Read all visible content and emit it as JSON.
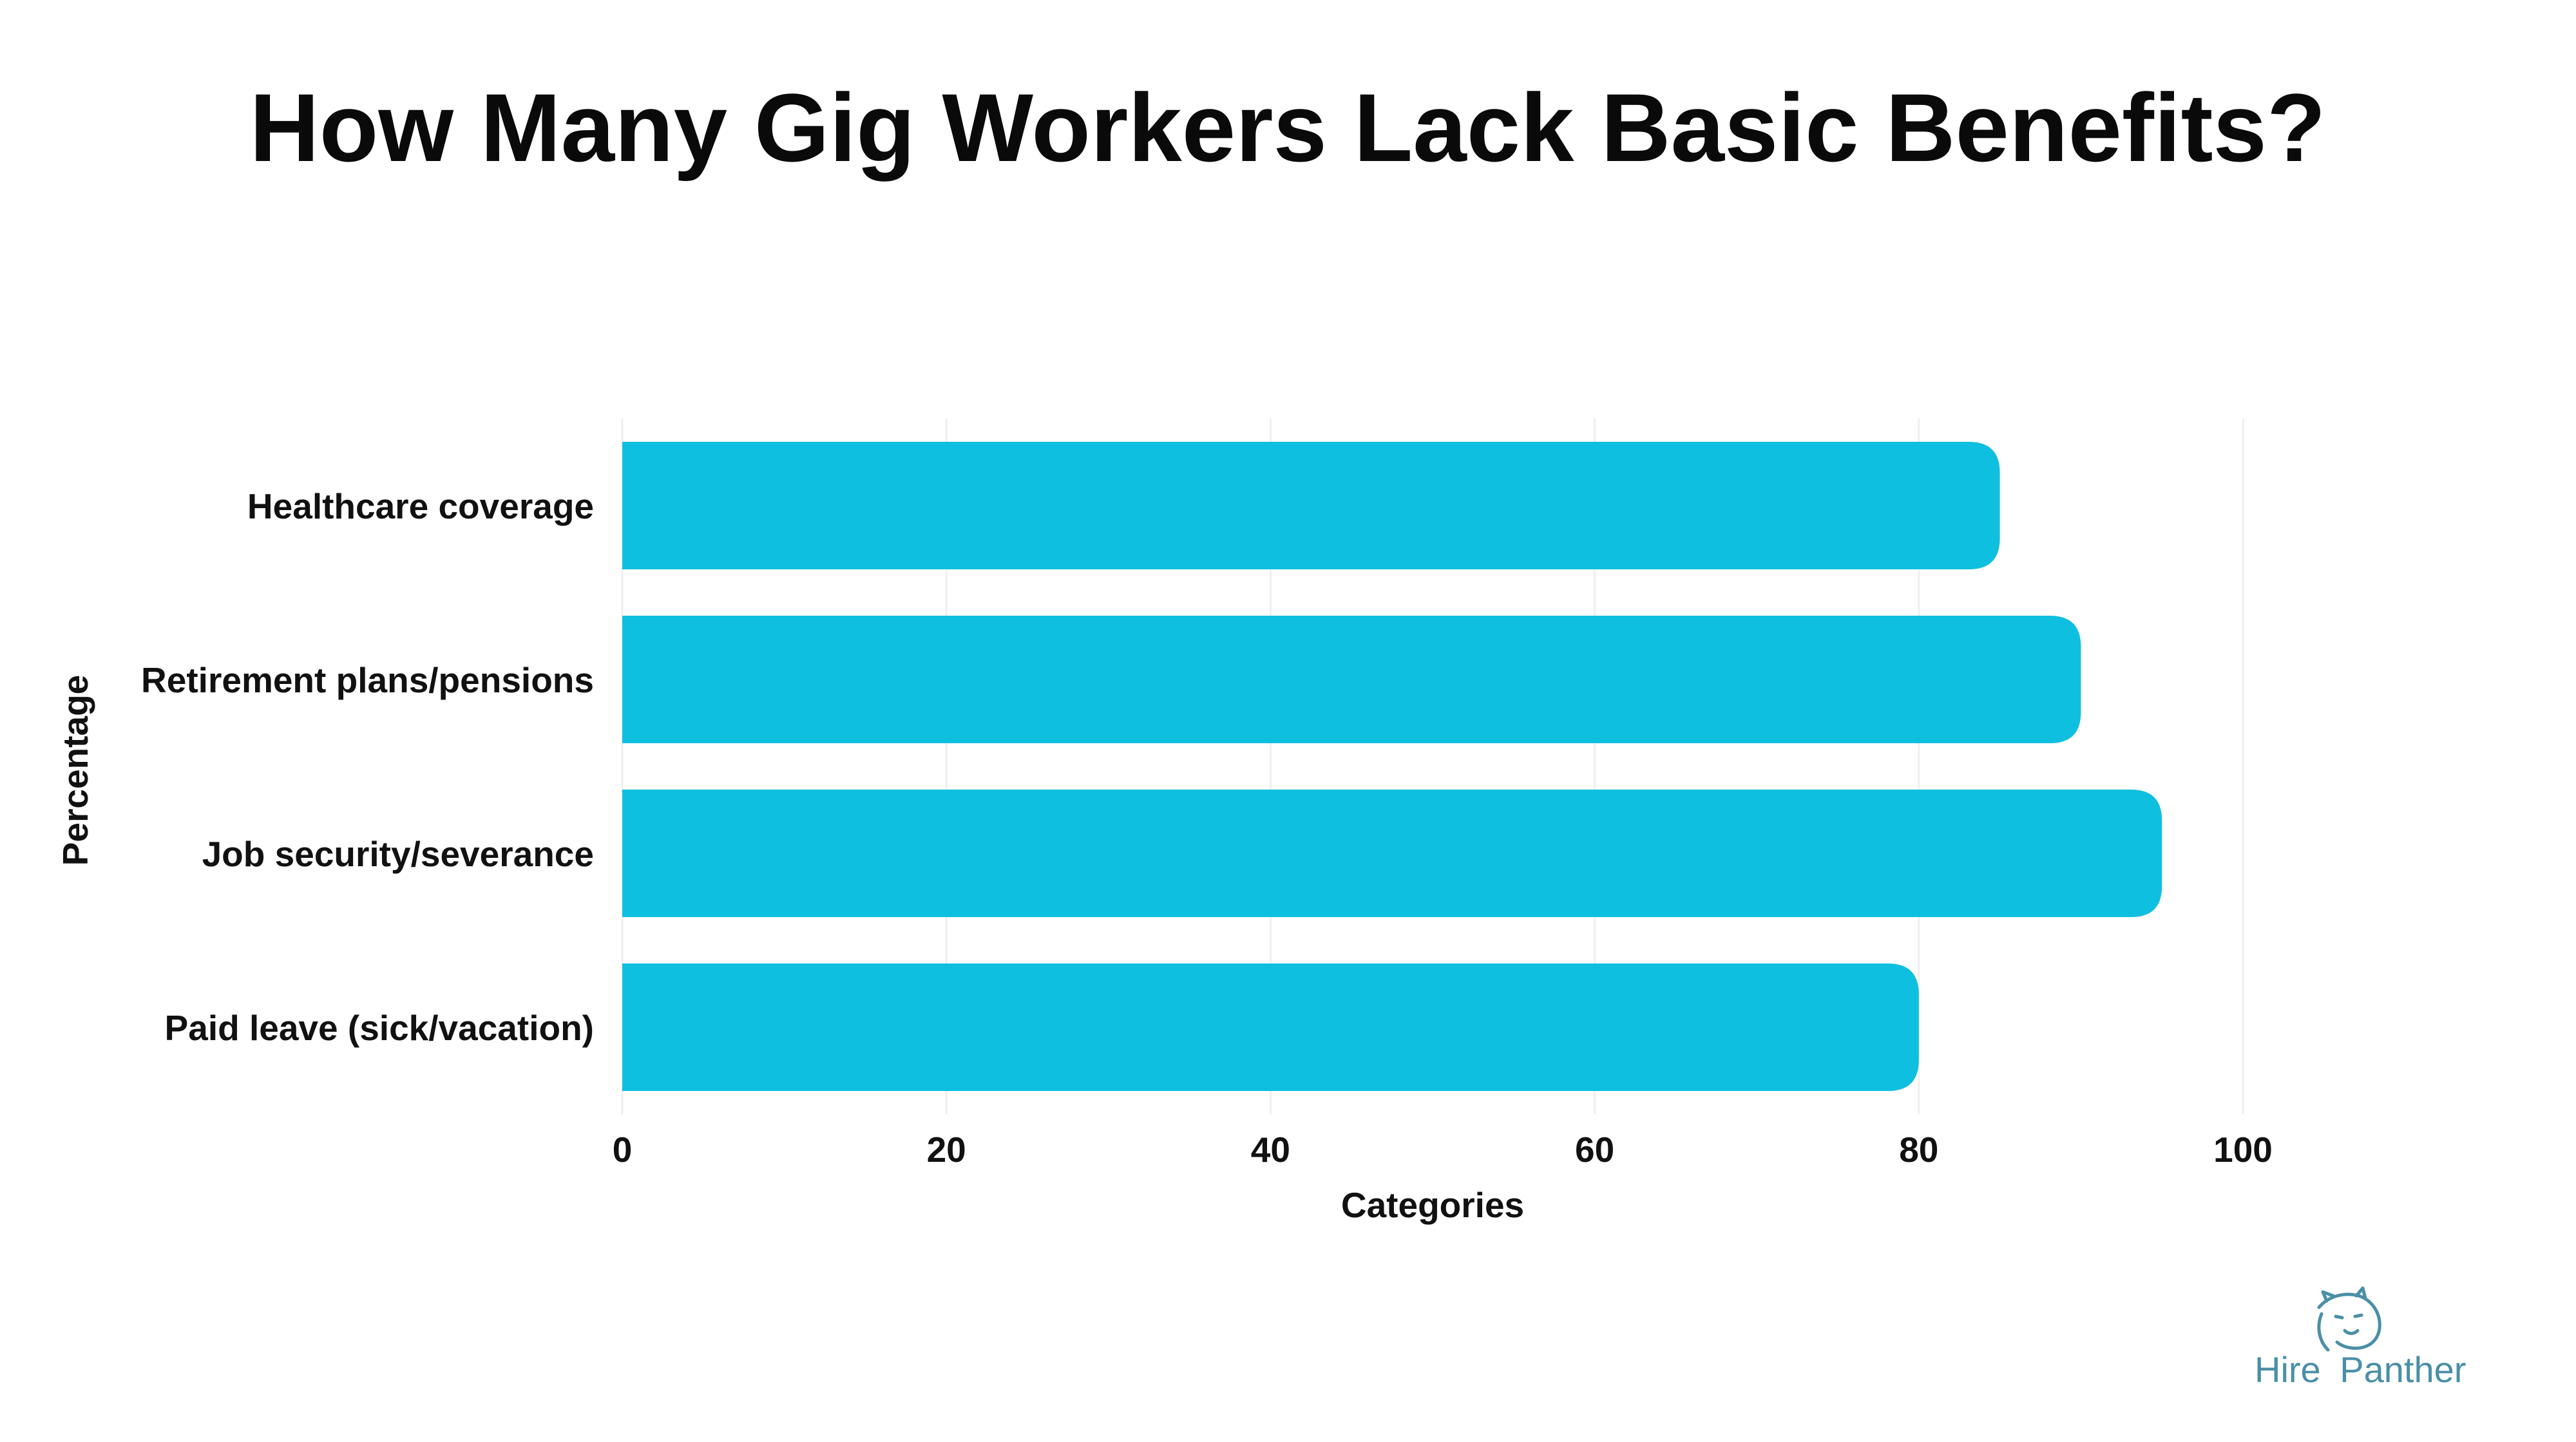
{
  "chart_data": {
    "type": "bar",
    "orientation": "horizontal",
    "title": "How Many Gig Workers Lack Basic Benefits?",
    "xlabel": "Categories",
    "ylabel": "Percentage",
    "categories": [
      "Healthcare coverage",
      "Retirement plans/pensions",
      "Job security/severance",
      "Paid leave (sick/vacation)"
    ],
    "values": [
      85,
      90,
      95,
      80
    ],
    "xlim": [
      0,
      100
    ],
    "xticks": [
      0,
      20,
      40,
      60,
      80,
      100
    ],
    "grid": true,
    "legend": "none",
    "bar_color": "#0FBFDF"
  },
  "logo": {
    "word1": "Hire",
    "word2": "Panther",
    "color": "#4a8fa6"
  }
}
